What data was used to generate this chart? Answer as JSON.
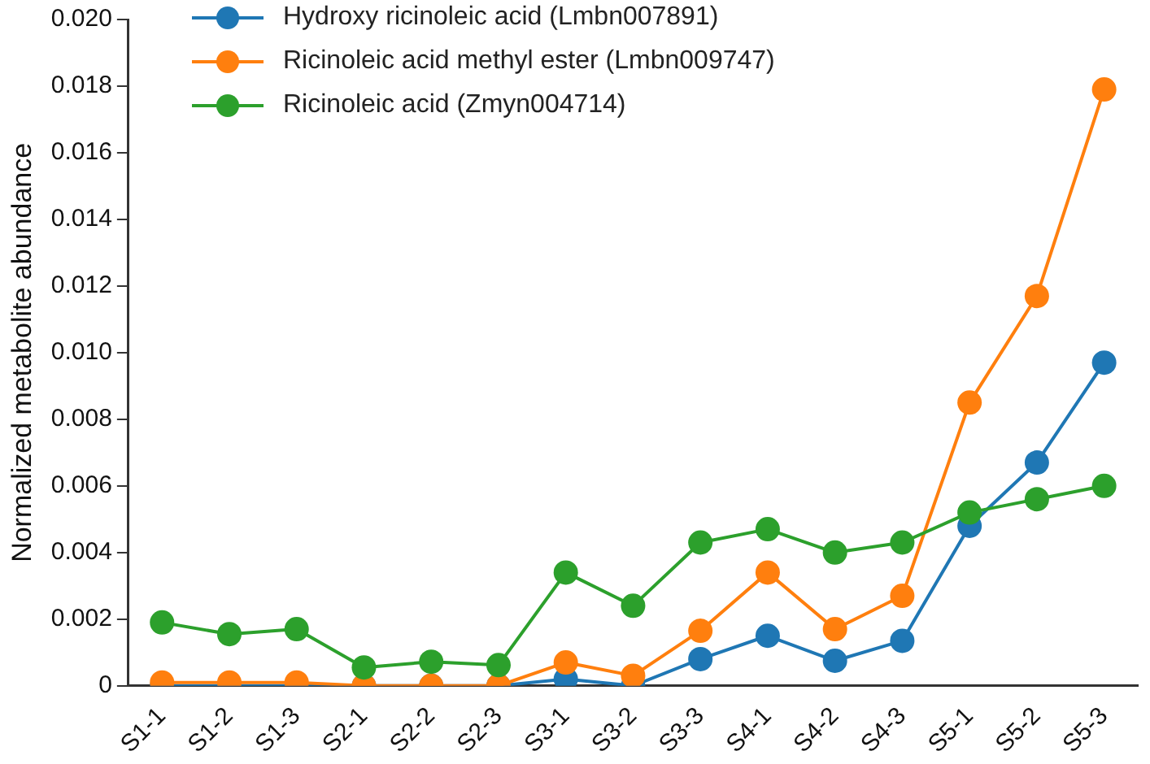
{
  "chart_data": {
    "type": "line",
    "ylabel": "Normalized metabolite abundance",
    "categories": [
      "S1-1",
      "S1-2",
      "S1-3",
      "S2-1",
      "S2-2",
      "S2-3",
      "S3-1",
      "S3-2",
      "S3-3",
      "S4-1",
      "S4-2",
      "S4-3",
      "S5-1",
      "S5-2",
      "S5-3"
    ],
    "series": [
      {
        "name": "Hydroxy ricinoleic acid (Lmbn007891)",
        "color": "#1f77b4",
        "values": [
          0,
          0,
          0,
          0,
          0,
          0,
          0.0002,
          0,
          0.0008,
          0.0015,
          0.00075,
          0.00135,
          0.0048,
          0.0067,
          0.0097
        ]
      },
      {
        "name": "Ricinoleic acid methyl ester (Lmbn009747)",
        "color": "#ff7f0e",
        "values": [
          0.0001,
          0.0001,
          0.0001,
          0,
          0,
          0,
          0.0007,
          0.0003,
          0.00165,
          0.0034,
          0.0017,
          0.0027,
          0.0085,
          0.0117,
          0.0179
        ]
      },
      {
        "name": "Ricinoleic acid (Zmyn004714)",
        "color": "#2ca02c",
        "values": [
          0.0019,
          0.00155,
          0.0017,
          0.00055,
          0.00072,
          0.00062,
          0.0034,
          0.0024,
          0.0043,
          0.0047,
          0.004,
          0.0043,
          0.0052,
          0.0056,
          0.006
        ]
      }
    ],
    "ylim": [
      0,
      0.02
    ],
    "yticks": [
      0,
      0.002,
      0.004,
      0.006,
      0.008,
      {
        "value": 0.01,
        "label": "0.010"
      },
      0.012,
      0.014,
      0.016,
      0.018,
      {
        "value": 0.02,
        "label": "0.020"
      }
    ],
    "grid": false,
    "legend": "top left",
    "marker": "circle",
    "line_style": "solid"
  }
}
